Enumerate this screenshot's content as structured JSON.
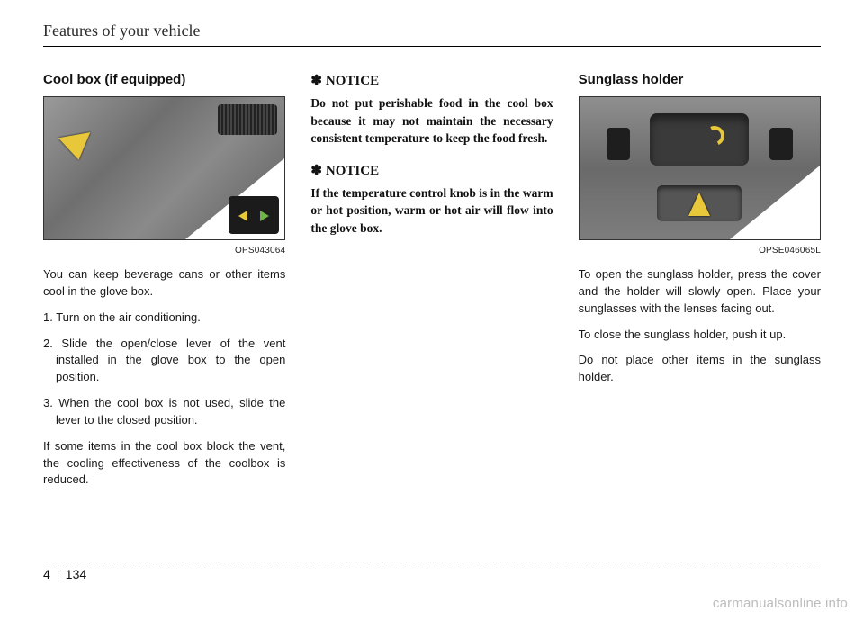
{
  "header": {
    "title": "Features of your vehicle"
  },
  "col1": {
    "title": "Cool box (if equipped)",
    "img_code": "OPS043064",
    "p1": "You can keep beverage cans or other items cool in the glove box.",
    "li1": "1. Turn on the air conditioning.",
    "li2": "2. Slide the open/close lever of the vent installed in the glove box to the open position.",
    "li3": "3. When the cool box is not used, slide the lever to the closed position.",
    "p2": "If some items in the cool box block the vent, the cooling effectiveness of the coolbox is reduced."
  },
  "col2": {
    "notice_mark": "✽",
    "notice_label": "NOTICE",
    "n1_body": "Do not put perishable food in the cool box because it may not maintain the necessary consistent temperature to keep the food fresh.",
    "n2_body": "If the temperature control knob is in the warm or hot position, warm or hot air will flow into the glove box."
  },
  "col3": {
    "title": "Sunglass holder",
    "img_code": "OPSE046065L",
    "p1": "To open the sunglass holder, press the cover and the holder will slowly open. Place your sunglasses with the lenses facing out.",
    "p2": "To close the sunglass holder, push it up.",
    "p3": "Do not place other items in the sunglass holder."
  },
  "footer": {
    "chapter": "4",
    "page": "134"
  },
  "watermark": "carmanualsonline.info"
}
